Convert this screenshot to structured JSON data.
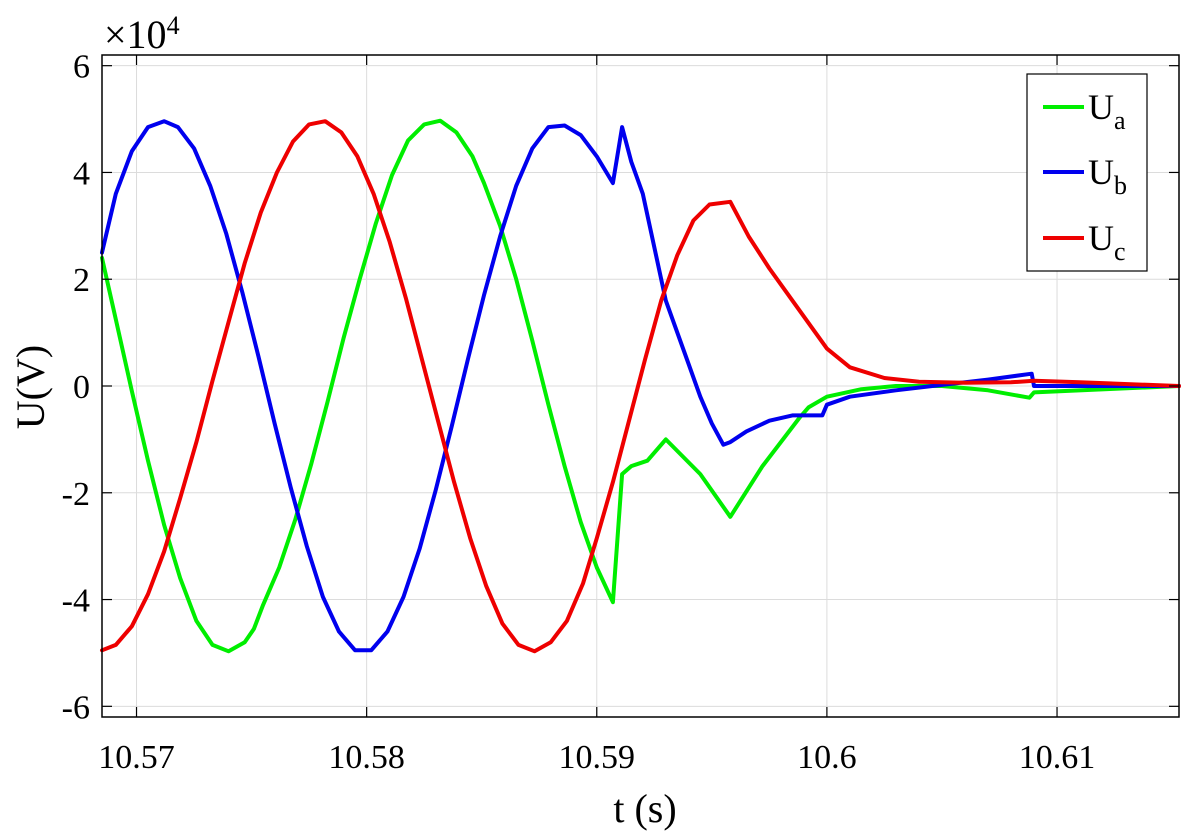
{
  "chart_data": {
    "type": "line",
    "xlabel": "t (s)",
    "ylabel": "U(V)",
    "exponent_label": "×10",
    "exponent_power": "4",
    "xlim": [
      10.5685,
      10.6153
    ],
    "ylim": [
      -62000,
      62000
    ],
    "xticks": [
      10.57,
      10.58,
      10.59,
      10.6,
      10.61
    ],
    "xtick_labels": [
      "10.57",
      "10.58",
      "10.59",
      "10.6",
      "10.61"
    ],
    "yticks": [
      -60000,
      -40000,
      -20000,
      0,
      20000,
      40000,
      60000
    ],
    "ytick_labels": [
      "-6",
      "-4",
      "-2",
      "0",
      "2",
      "4",
      "6"
    ],
    "grid": true,
    "legend_position": "top-right",
    "series": [
      {
        "name": "U",
        "subscript": "a",
        "color": "#00ee00",
        "x": [
          10.5685,
          10.5691,
          10.5698,
          10.5705,
          10.5712,
          10.5719,
          10.5726,
          10.5733,
          10.574,
          10.5747,
          10.5751,
          10.5755,
          10.5762,
          10.5769,
          10.5776,
          10.5783,
          10.579,
          10.5797,
          10.5804,
          10.5811,
          10.5818,
          10.5825,
          10.5832,
          10.5839,
          10.5846,
          10.5851,
          10.5858,
          10.5865,
          10.5872,
          10.5879,
          10.5886,
          10.5893,
          10.59,
          10.5907,
          10.5911,
          10.5915,
          10.5922,
          10.593,
          10.5945,
          10.5958,
          10.5972,
          10.5988,
          10.5992,
          10.6,
          10.6015,
          10.603,
          10.605,
          10.607,
          10.6088,
          10.609,
          10.6153
        ],
        "y": [
          24000,
          12500,
          -1000,
          -14000,
          -26000,
          -36000,
          -44000,
          -48500,
          -49700,
          -48000,
          -45500,
          -41000,
          -34000,
          -25000,
          -14500,
          -3000,
          9000,
          20000,
          30500,
          39500,
          46000,
          49000,
          49700,
          47500,
          43000,
          38000,
          30000,
          20000,
          8500,
          -3500,
          -15000,
          -25500,
          -34000,
          -40500,
          -16500,
          -15000,
          -14000,
          -10000,
          -16500,
          -24500,
          -15000,
          -6000,
          -4000,
          -2000,
          -600,
          0,
          0,
          -800,
          -2200,
          -1200,
          0
        ]
      },
      {
        "name": "U",
        "subscript": "b",
        "color": "#0000ee",
        "x": [
          10.5685,
          10.5691,
          10.5698,
          10.5705,
          10.5712,
          10.5718,
          10.5725,
          10.5732,
          10.5739,
          10.5746,
          10.5753,
          10.576,
          10.5767,
          10.5774,
          10.5781,
          10.5788,
          10.5795,
          10.5802,
          10.5809,
          10.5816,
          10.5823,
          10.583,
          10.5837,
          10.5844,
          10.5851,
          10.5858,
          10.5865,
          10.5872,
          10.5879,
          10.5886,
          10.5893,
          10.59,
          10.5907,
          10.5911,
          10.5915,
          10.592,
          10.5925,
          10.593,
          10.5935,
          10.594,
          10.5945,
          10.595,
          10.5955,
          10.5958,
          10.5965,
          10.5975,
          10.5985,
          10.5998,
          10.6,
          10.601,
          10.603,
          10.605,
          10.607,
          10.6089,
          10.609,
          10.6153
        ],
        "y": [
          25000,
          36000,
          44000,
          48500,
          49600,
          48500,
          44500,
          37500,
          28500,
          17500,
          5500,
          -7000,
          -19000,
          -30000,
          -39500,
          -46000,
          -49500,
          -49500,
          -46000,
          -39500,
          -30500,
          -19500,
          -7500,
          5000,
          17000,
          28000,
          37500,
          44500,
          48500,
          48800,
          47000,
          43000,
          38000,
          48500,
          42000,
          36000,
          26000,
          16000,
          10000,
          4000,
          -2000,
          -7000,
          -11000,
          -10500,
          -8500,
          -6500,
          -5500,
          -5500,
          -3500,
          -2000,
          -800,
          200,
          1200,
          2300,
          0,
          0
        ]
      },
      {
        "name": "U",
        "subscript": "c",
        "color": "#ee0000",
        "x": [
          10.5685,
          10.5691,
          10.5698,
          10.5705,
          10.5712,
          10.5719,
          10.5726,
          10.5733,
          10.574,
          10.5747,
          10.5754,
          10.5761,
          10.5768,
          10.5775,
          10.5782,
          10.5789,
          10.5796,
          10.5803,
          10.581,
          10.5817,
          10.5824,
          10.5831,
          10.5838,
          10.5845,
          10.5852,
          10.5859,
          10.5866,
          10.5873,
          10.588,
          10.5887,
          10.5894,
          10.59,
          10.5907,
          10.5914,
          10.5921,
          10.5928,
          10.5935,
          10.5942,
          10.5949,
          10.5958,
          10.5966,
          10.5975,
          10.5985,
          10.5995,
          10.6,
          10.601,
          10.6025,
          10.604,
          10.606,
          10.608,
          10.609,
          10.611,
          10.6153
        ],
        "y": [
          -49500,
          -48500,
          -45000,
          -39000,
          -31000,
          -21000,
          -10500,
          1000,
          12000,
          23000,
          32500,
          40000,
          45800,
          49000,
          49600,
          47500,
          43000,
          36000,
          27000,
          16500,
          5000,
          -6500,
          -18000,
          -28500,
          -37500,
          -44500,
          -48500,
          -49700,
          -48000,
          -44000,
          -37000,
          -28500,
          -18000,
          -6500,
          5000,
          16000,
          24500,
          31000,
          34000,
          34500,
          28000,
          22000,
          16000,
          10000,
          7000,
          3500,
          1500,
          800,
          600,
          700,
          1000,
          700,
          0
        ]
      }
    ]
  }
}
